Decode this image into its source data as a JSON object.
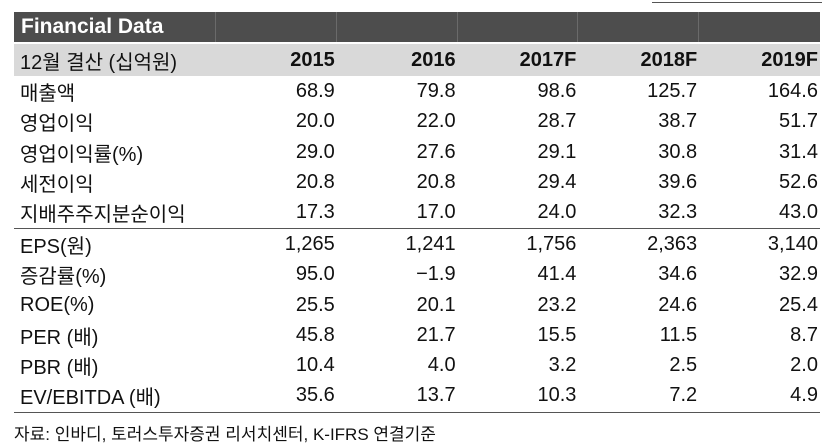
{
  "title": "Financial Data",
  "header": {
    "label": "12월 결산 (십억원)",
    "years": [
      "2015",
      "2016",
      "2017F",
      "2018F",
      "2019F"
    ]
  },
  "rows": [
    {
      "label": "매출액",
      "values": [
        "68.9",
        "79.8",
        "98.6",
        "125.7",
        "164.6"
      ]
    },
    {
      "label": "영업이익",
      "values": [
        "20.0",
        "22.0",
        "28.7",
        "38.7",
        "51.7"
      ]
    },
    {
      "label": "영업이익률(%)",
      "values": [
        "29.0",
        "27.6",
        "29.1",
        "30.8",
        "31.4"
      ]
    },
    {
      "label": "세전이익",
      "values": [
        "20.8",
        "20.8",
        "29.4",
        "39.6",
        "52.6"
      ]
    },
    {
      "label": "지배주주지분순이익",
      "values": [
        "17.3",
        "17.0",
        "24.0",
        "32.3",
        "43.0"
      ]
    },
    {
      "label": "EPS(원)",
      "values": [
        "1,265",
        "1,241",
        "1,756",
        "2,363",
        "3,140"
      ]
    },
    {
      "label": "증감률(%)",
      "values": [
        "95.0",
        "−1.9",
        "41.4",
        "34.6",
        "32.9"
      ]
    },
    {
      "label": "ROE(%)",
      "values": [
        "25.5",
        "20.1",
        "23.2",
        "24.6",
        "25.4"
      ]
    },
    {
      "label": "PER (배)",
      "values": [
        "45.8",
        "21.7",
        "15.5",
        "11.5",
        "8.7"
      ]
    },
    {
      "label": "PBR (배)",
      "values": [
        "10.4",
        "4.0",
        "3.2",
        "2.5",
        "2.0"
      ]
    },
    {
      "label": "EV/EBITDA (배)",
      "values": [
        "35.6",
        "13.7",
        "10.3",
        "7.2",
        "4.9"
      ]
    }
  ],
  "source": "자료: 인바디, 토러스투자증권 리서치센터, K-IFRS 연결기준"
}
